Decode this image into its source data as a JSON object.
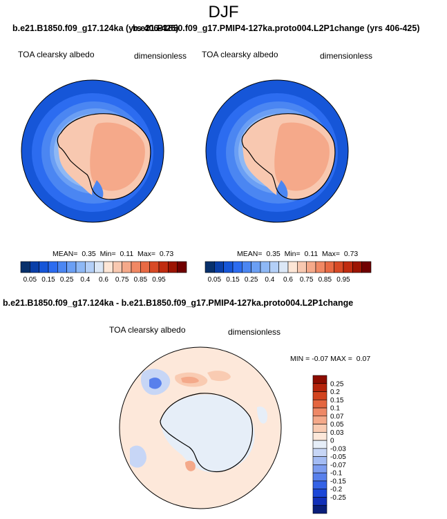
{
  "figure": {
    "season": "DJF"
  },
  "panels": [
    {
      "title": "b.e21.B1850.f09_g17.124ka (yrs 406-425)",
      "variable": "TOA clearsky albedo",
      "units": "dimensionless",
      "stats": {
        "mean_label": "MEAN=",
        "mean": "0.35",
        "min_label": "Min=",
        "min": "0.11",
        "max_label": "Max=",
        "max": "0.73"
      }
    },
    {
      "title": "b.e21.B1850.f09_g17.PMIP4-127ka.proto004.L2P1change (yrs 406-425)",
      "variable": "TOA clearsky albedo",
      "units": "dimensionless",
      "stats": {
        "mean_label": "MEAN=",
        "mean": "0.35",
        "min_label": "Min=",
        "min": "0.11",
        "max_label": "Max=",
        "max": "0.73"
      }
    }
  ],
  "diff_panel": {
    "title": "b.e21.B1850.f09_g17.124ka - b.e21.B1850.f09_g17.PMIP4-127ka.proto004.L2P1change",
    "variable": "TOA clearsky albedo",
    "units": "dimensionless",
    "stats": {
      "min_label": "MIN =",
      "min": "-0.07",
      "max_label": "MAX =",
      "max": "0.07"
    }
  },
  "colorbar_abs": {
    "colors": [
      "#08306b",
      "#0a3fa8",
      "#1656d8",
      "#2c6cf0",
      "#4b86f2",
      "#6b9ff4",
      "#8eb8f5",
      "#b3cff7",
      "#dbe7f6",
      "#fde6d6",
      "#f8c8b0",
      "#f5a98a",
      "#f08864",
      "#e86a44",
      "#d84a26",
      "#c02c10",
      "#9c1402",
      "#700000"
    ],
    "labels": [
      "0.05",
      "0.15",
      "0.25",
      "0.4",
      "0.6",
      "0.75",
      "0.85",
      "0.95"
    ],
    "label_slots": [
      1,
      3,
      5,
      7,
      9,
      11,
      13,
      15
    ]
  },
  "colorbar_diff": {
    "colors": [
      "#0a1f7a",
      "#1230b8",
      "#1c47d8",
      "#3462e6",
      "#5880ec",
      "#7d9df0",
      "#a4bcf4",
      "#c7d6f6",
      "#e6eef8",
      "#fde8da",
      "#f9cbb2",
      "#f4a98a",
      "#ee8866",
      "#e46640",
      "#d2441f",
      "#b5240b",
      "#8c0c00"
    ],
    "labels": [
      "0.25",
      "0.2",
      "0.15",
      "0.1",
      "0.07",
      "0.05",
      "0.03",
      "0",
      "-0.03",
      "-0.05",
      "-0.07",
      "-0.1",
      "-0.15",
      "-0.2",
      "-0.25"
    ]
  }
}
